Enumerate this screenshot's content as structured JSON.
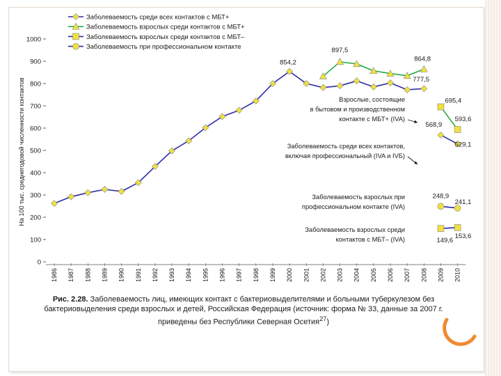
{
  "chart_data": {
    "type": "line",
    "ylabel": "На 100 тыс. среднегодовой численности контактов",
    "ylim": [
      0,
      1000
    ],
    "yticks": [
      0,
      100,
      200,
      300,
      400,
      500,
      600,
      700,
      800,
      900,
      1000
    ],
    "categories": [
      "1986",
      "1987",
      "1988",
      "1989",
      "1990",
      "1991",
      "1992",
      "1993",
      "1994",
      "1995",
      "1996",
      "1997",
      "1998",
      "1999",
      "2000",
      "2001",
      "2002",
      "2003",
      "2004",
      "2005",
      "2006",
      "2007",
      "2008",
      "2009",
      "2010"
    ],
    "series": [
      {
        "name": "Заболеваемость среди всех контактов с МБТ+",
        "marker": "diamond",
        "color": "#2a2aa8",
        "values": [
          262,
          292,
          310,
          325,
          316,
          355,
          428,
          498,
          543,
          602,
          652,
          680,
          722,
          800,
          854.2,
          800,
          782,
          790,
          812,
          785,
          803,
          772,
          777.5,
          null,
          null
        ]
      },
      {
        "name": "Заболеваемость взрослых среди контактов с МБТ+",
        "marker": "triangle",
        "color": "#22aa44",
        "values": [
          null,
          null,
          null,
          null,
          null,
          null,
          null,
          null,
          null,
          null,
          null,
          null,
          null,
          null,
          null,
          null,
          833,
          897.5,
          888,
          857,
          845,
          835,
          864.8,
          null,
          null
        ]
      },
      {
        "name": "Заболеваемость взрослых среди контактов с МБТ–",
        "marker": "square",
        "color": "#2a2aa8",
        "values": [
          null,
          null,
          null,
          null,
          null,
          null,
          null,
          null,
          null,
          null,
          null,
          null,
          null,
          null,
          null,
          null,
          null,
          null,
          null,
          null,
          null,
          null,
          null,
          149.6,
          153.6
        ]
      },
      {
        "name": "Заболеваемость при профессиональном контакте",
        "marker": "circle",
        "color": "#2a2aa8",
        "values": [
          null,
          null,
          null,
          null,
          null,
          null,
          null,
          null,
          null,
          null,
          null,
          null,
          null,
          null,
          null,
          null,
          null,
          null,
          null,
          null,
          null,
          null,
          null,
          248.9,
          241.1
        ]
      },
      {
        "name": "Взрослые, состоящие в бытовом и производственном контакте с МБТ+ (IVA)",
        "marker": "square",
        "color": "#22aa44",
        "values": [
          null,
          null,
          null,
          null,
          null,
          null,
          null,
          null,
          null,
          null,
          null,
          null,
          null,
          null,
          null,
          null,
          null,
          null,
          null,
          null,
          null,
          null,
          null,
          695.4,
          593.6
        ]
      },
      {
        "name": "Заболеваемость среди всех контактов, включая профессиональный (IVA и IVБ)",
        "marker": "diamond",
        "color": "#2a2aa8",
        "values": [
          null,
          null,
          null,
          null,
          null,
          null,
          null,
          null,
          null,
          null,
          null,
          null,
          null,
          null,
          null,
          null,
          null,
          null,
          null,
          null,
          null,
          null,
          null,
          568.9,
          529.1
        ]
      }
    ],
    "legend": [
      "Заболеваемость среди всех контактов с МБТ+",
      "Заболеваемость взрослых среди контактов с МБТ+",
      "Заболеваемость взрослых среди контактов с МБТ–",
      "Заболеваемость при профессиональном контакте"
    ],
    "data_labels": [
      {
        "category": "2000",
        "value": 854.2,
        "text": "854,2"
      },
      {
        "category": "2003",
        "value": 897.5,
        "text": "897,5"
      },
      {
        "category": "2008",
        "value": 864.8,
        "text": "864,8"
      },
      {
        "category": "2008",
        "value": 777.5,
        "text": "777,5"
      },
      {
        "category": "2009",
        "value": 695.4,
        "text": "695,4"
      },
      {
        "category": "2010",
        "value": 593.6,
        "text": "593,6"
      },
      {
        "category": "2009",
        "value": 568.9,
        "text": "568,9"
      },
      {
        "category": "2010",
        "value": 529.1,
        "text": "529,1"
      },
      {
        "category": "2009",
        "value": 248.9,
        "text": "248,9"
      },
      {
        "category": "2010",
        "value": 241.1,
        "text": "241,1"
      },
      {
        "category": "2009",
        "value": 149.6,
        "text": "149,6"
      },
      {
        "category": "2010",
        "value": 153.6,
        "text": "153,6"
      }
    ],
    "annotations": [
      {
        "lines": [
          "Взрослые, состоящие",
          "в бытовом и производственном",
          "контакте с МБТ+ (IVA)"
        ]
      },
      {
        "lines": [
          "Заболеваемость среди всех контактов,",
          "включая профессиональный (IVA и IVБ)"
        ]
      },
      {
        "lines": [
          "Заболеваемость взрослых при",
          "профессиональном контакте (IVA)"
        ]
      },
      {
        "lines": [
          "Заболеваемость взрослых среди",
          "контактов с МБТ– (IVA)"
        ]
      }
    ]
  },
  "caption": {
    "figure_number": "Рис. 2.28.",
    "text": "Заболеваемость лиц, имеющих контакт с бактериовыделителями и больными туберкулезом без бактериовыделения среди взрослых и детей, Российская Федерация (источник: форма № 33, данные за 2007 г. приведены без Республики Северная Осетия",
    "superscript": "27",
    "end": ")"
  },
  "colors": {
    "marker_fill": "#f0e040",
    "blue_line": "#2a2aa8",
    "green_line": "#22aa44",
    "accent_orange": "#f08a30"
  }
}
